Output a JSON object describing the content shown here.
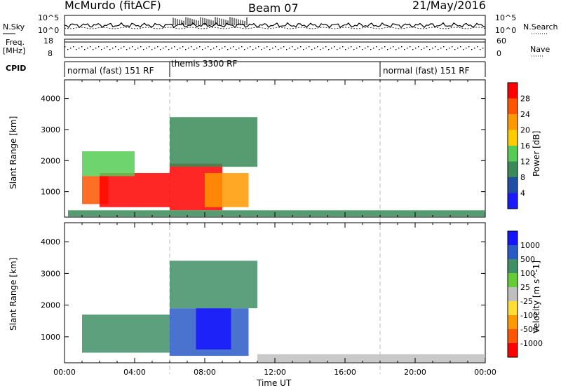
{
  "header": {
    "station": "McMurdo (fitACF)",
    "beam": "Beam 07",
    "date": "21/May/2016"
  },
  "side_labels": {
    "nsky": "N.Sky",
    "nsearch": "N.Search",
    "freq": "Freq.",
    "freq_unit": "[MHz]",
    "nave": "Nave",
    "cpid": "CPID"
  },
  "noise_axis": {
    "left_top": "10^5",
    "left_bottom": "10^0",
    "right_top": "10^5",
    "right_bottom": "10^0"
  },
  "freq_axis": {
    "left_top": "18",
    "left_bottom": "8",
    "right_top": "60",
    "right_bottom": "0"
  },
  "modes": [
    {
      "label": "normal (fast) 151 RF",
      "start_hour": 0,
      "end_hour": 6
    },
    {
      "label": "themis 3300 RF",
      "start_hour": 6,
      "end_hour": 18
    },
    {
      "label": "normal (fast) 151 RF",
      "start_hour": 18,
      "end_hour": 24
    }
  ],
  "colors": {
    "power_scale": [
      "#1a1aff",
      "#1f4ea6",
      "#3a8a57",
      "#55cc55",
      "#ffcc00",
      "#ff9900",
      "#ff5500",
      "#ff0000"
    ],
    "velocity_scale": [
      "#1414ff",
      "#2a5ac8",
      "#3f8f66",
      "#66cc33",
      "#bfbfbf",
      "#ffdd33",
      "#ff9900",
      "#ff5500",
      "#ff0000"
    ]
  },
  "chart_data": [
    {
      "type": "heatmap",
      "name": "power",
      "xlabel": "",
      "ylabel": "Slant Range [km]",
      "xlim": [
        0,
        24
      ],
      "ylim": [
        180,
        4600
      ],
      "yticks": [
        1000,
        2000,
        3000,
        4000
      ],
      "colorbar": {
        "label": "Power [dB]",
        "ticks": [
          4,
          8,
          12,
          16,
          20,
          24,
          28
        ],
        "range": [
          0,
          32
        ]
      },
      "regions": [
        {
          "hours": [
            1.0,
            2.5
          ],
          "range_km": [
            600,
            1500
          ],
          "value": 26
        },
        {
          "hours": [
            2.0,
            6.0
          ],
          "range_km": [
            500,
            1600
          ],
          "value": 28
        },
        {
          "hours": [
            6.0,
            9.0
          ],
          "range_km": [
            400,
            1900
          ],
          "value": 29
        },
        {
          "hours": [
            8.0,
            10.5
          ],
          "range_km": [
            500,
            1600
          ],
          "value": 20
        },
        {
          "hours": [
            1.0,
            4.0
          ],
          "range_km": [
            1500,
            2300
          ],
          "value": 14
        },
        {
          "hours": [
            6.0,
            11.0
          ],
          "range_km": [
            1800,
            3400
          ],
          "value": 10
        },
        {
          "hours": [
            0.2,
            24.0
          ],
          "range_km": [
            200,
            400
          ],
          "value": 8
        }
      ]
    },
    {
      "type": "heatmap",
      "name": "velocity",
      "xlabel": "Time UT",
      "ylabel": "Slant Range [km]",
      "xlim": [
        0,
        24
      ],
      "ylim": [
        180,
        4600
      ],
      "yticks": [
        1000,
        2000,
        3000,
        4000
      ],
      "xticks": [
        "00:00",
        "04:00",
        "08:00",
        "12:00",
        "16:00",
        "20:00",
        "00:00"
      ],
      "colorbar": {
        "label": "Velocity [m s^-1]",
        "ticks": [
          "1000",
          "500",
          "100",
          "25",
          "-25",
          "-100",
          "-500",
          "-1000"
        ]
      },
      "regions": [
        {
          "hours": [
            1.0,
            6.0
          ],
          "range_km": [
            500,
            1700
          ],
          "value": 300
        },
        {
          "hours": [
            6.0,
            10.5
          ],
          "range_km": [
            400,
            1900
          ],
          "value": 700
        },
        {
          "hours": [
            7.5,
            9.5
          ],
          "range_km": [
            600,
            1900
          ],
          "value": 1000
        },
        {
          "hours": [
            6.0,
            11.0
          ],
          "range_km": [
            1900,
            3400
          ],
          "value": 100
        },
        {
          "hours": [
            11.0,
            24.0
          ],
          "range_km": [
            200,
            450
          ],
          "value": -25
        }
      ]
    }
  ]
}
